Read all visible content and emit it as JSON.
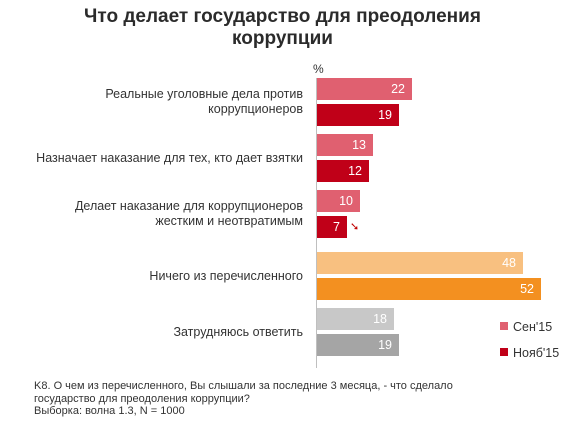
{
  "title_line1": "Что делает государство для преодоления",
  "title_line2": "коррупции",
  "chart_data": {
    "type": "bar",
    "orientation": "horizontal",
    "unit_label": "%",
    "categories": [
      [
        "Реальные уголовные дела против",
        "коррупционеров"
      ],
      [
        "Назначает наказание для тех, кто дает взятки"
      ],
      [
        "Делает наказание для коррупционеров",
        "жестким и неотвратимым"
      ],
      [
        "Ничего из перечисленного"
      ],
      [
        "Затрудняюсь ответить"
      ]
    ],
    "series": [
      {
        "name": "Сен'15",
        "values": [
          22,
          13,
          10,
          48,
          18
        ]
      },
      {
        "name": "Нояб'15",
        "values": [
          19,
          12,
          7,
          52,
          19
        ]
      }
    ],
    "colors": {
      "sep": [
        "#e06070",
        "#e06070",
        "#e06070",
        "#f8c080",
        "#c8c8c8"
      ],
      "nov": [
        "#c00018",
        "#c00018",
        "#c00018",
        "#f39020",
        "#a5a5a5"
      ],
      "legend_sep": "#e06070",
      "legend_nov": "#c00018"
    },
    "change_markers": [
      {
        "category_index": 2,
        "series": "Нояб'15",
        "direction": "down",
        "glyph": "➘"
      }
    ],
    "legend_position": "right",
    "grid": false
  },
  "footnote": {
    "line1": "K8. О чем из перечисленного, Вы слышали за последние 3 месяца, - что сделало",
    "line2": "государство для преодоления коррупции?",
    "line3": "Выборка: волна 1.3, N = 1000"
  }
}
